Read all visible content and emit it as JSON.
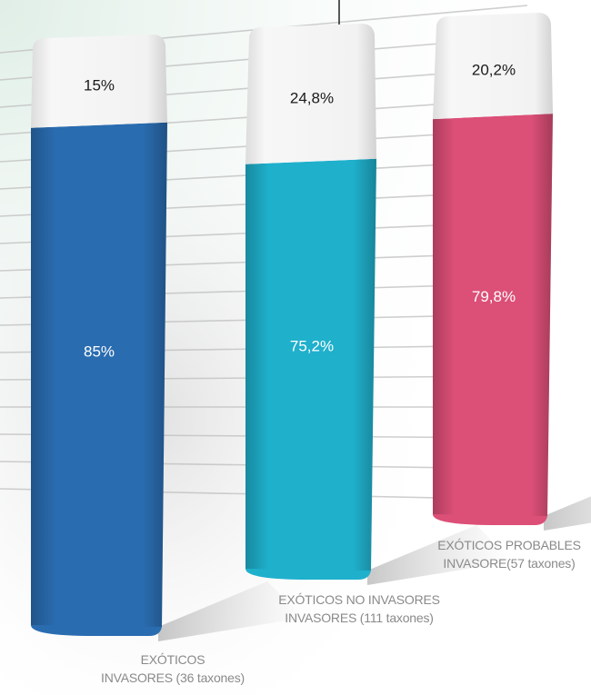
{
  "chart_data": {
    "type": "bar",
    "stacked": true,
    "categories": [
      [
        "EXÓTICOS",
        "INVASORES (36 taxones)"
      ],
      [
        "EXÓTICOS NO INVASORES",
        "INVASORES (111 taxones)"
      ],
      [
        "EXÓTICOS PROBABLES",
        "INVASORE(57 taxones)"
      ]
    ],
    "series": [
      {
        "values": [
          85,
          75.2,
          79.8
        ],
        "labels": [
          "85%",
          "75,2%",
          "79,8%"
        ],
        "colors": [
          "#2a6cb0",
          "#1fb0cc",
          "#dc4f77"
        ]
      },
      {
        "values": [
          15,
          24.8,
          20.2
        ],
        "labels": [
          "15%",
          "24,8%",
          "20,2%"
        ],
        "colors": [
          "#f4f4f4",
          "#f4f4f4",
          "#f4f4f4"
        ]
      }
    ],
    "ylim": [
      0,
      100
    ],
    "grid": true,
    "title": "",
    "xlabel": "",
    "ylabel": ""
  }
}
